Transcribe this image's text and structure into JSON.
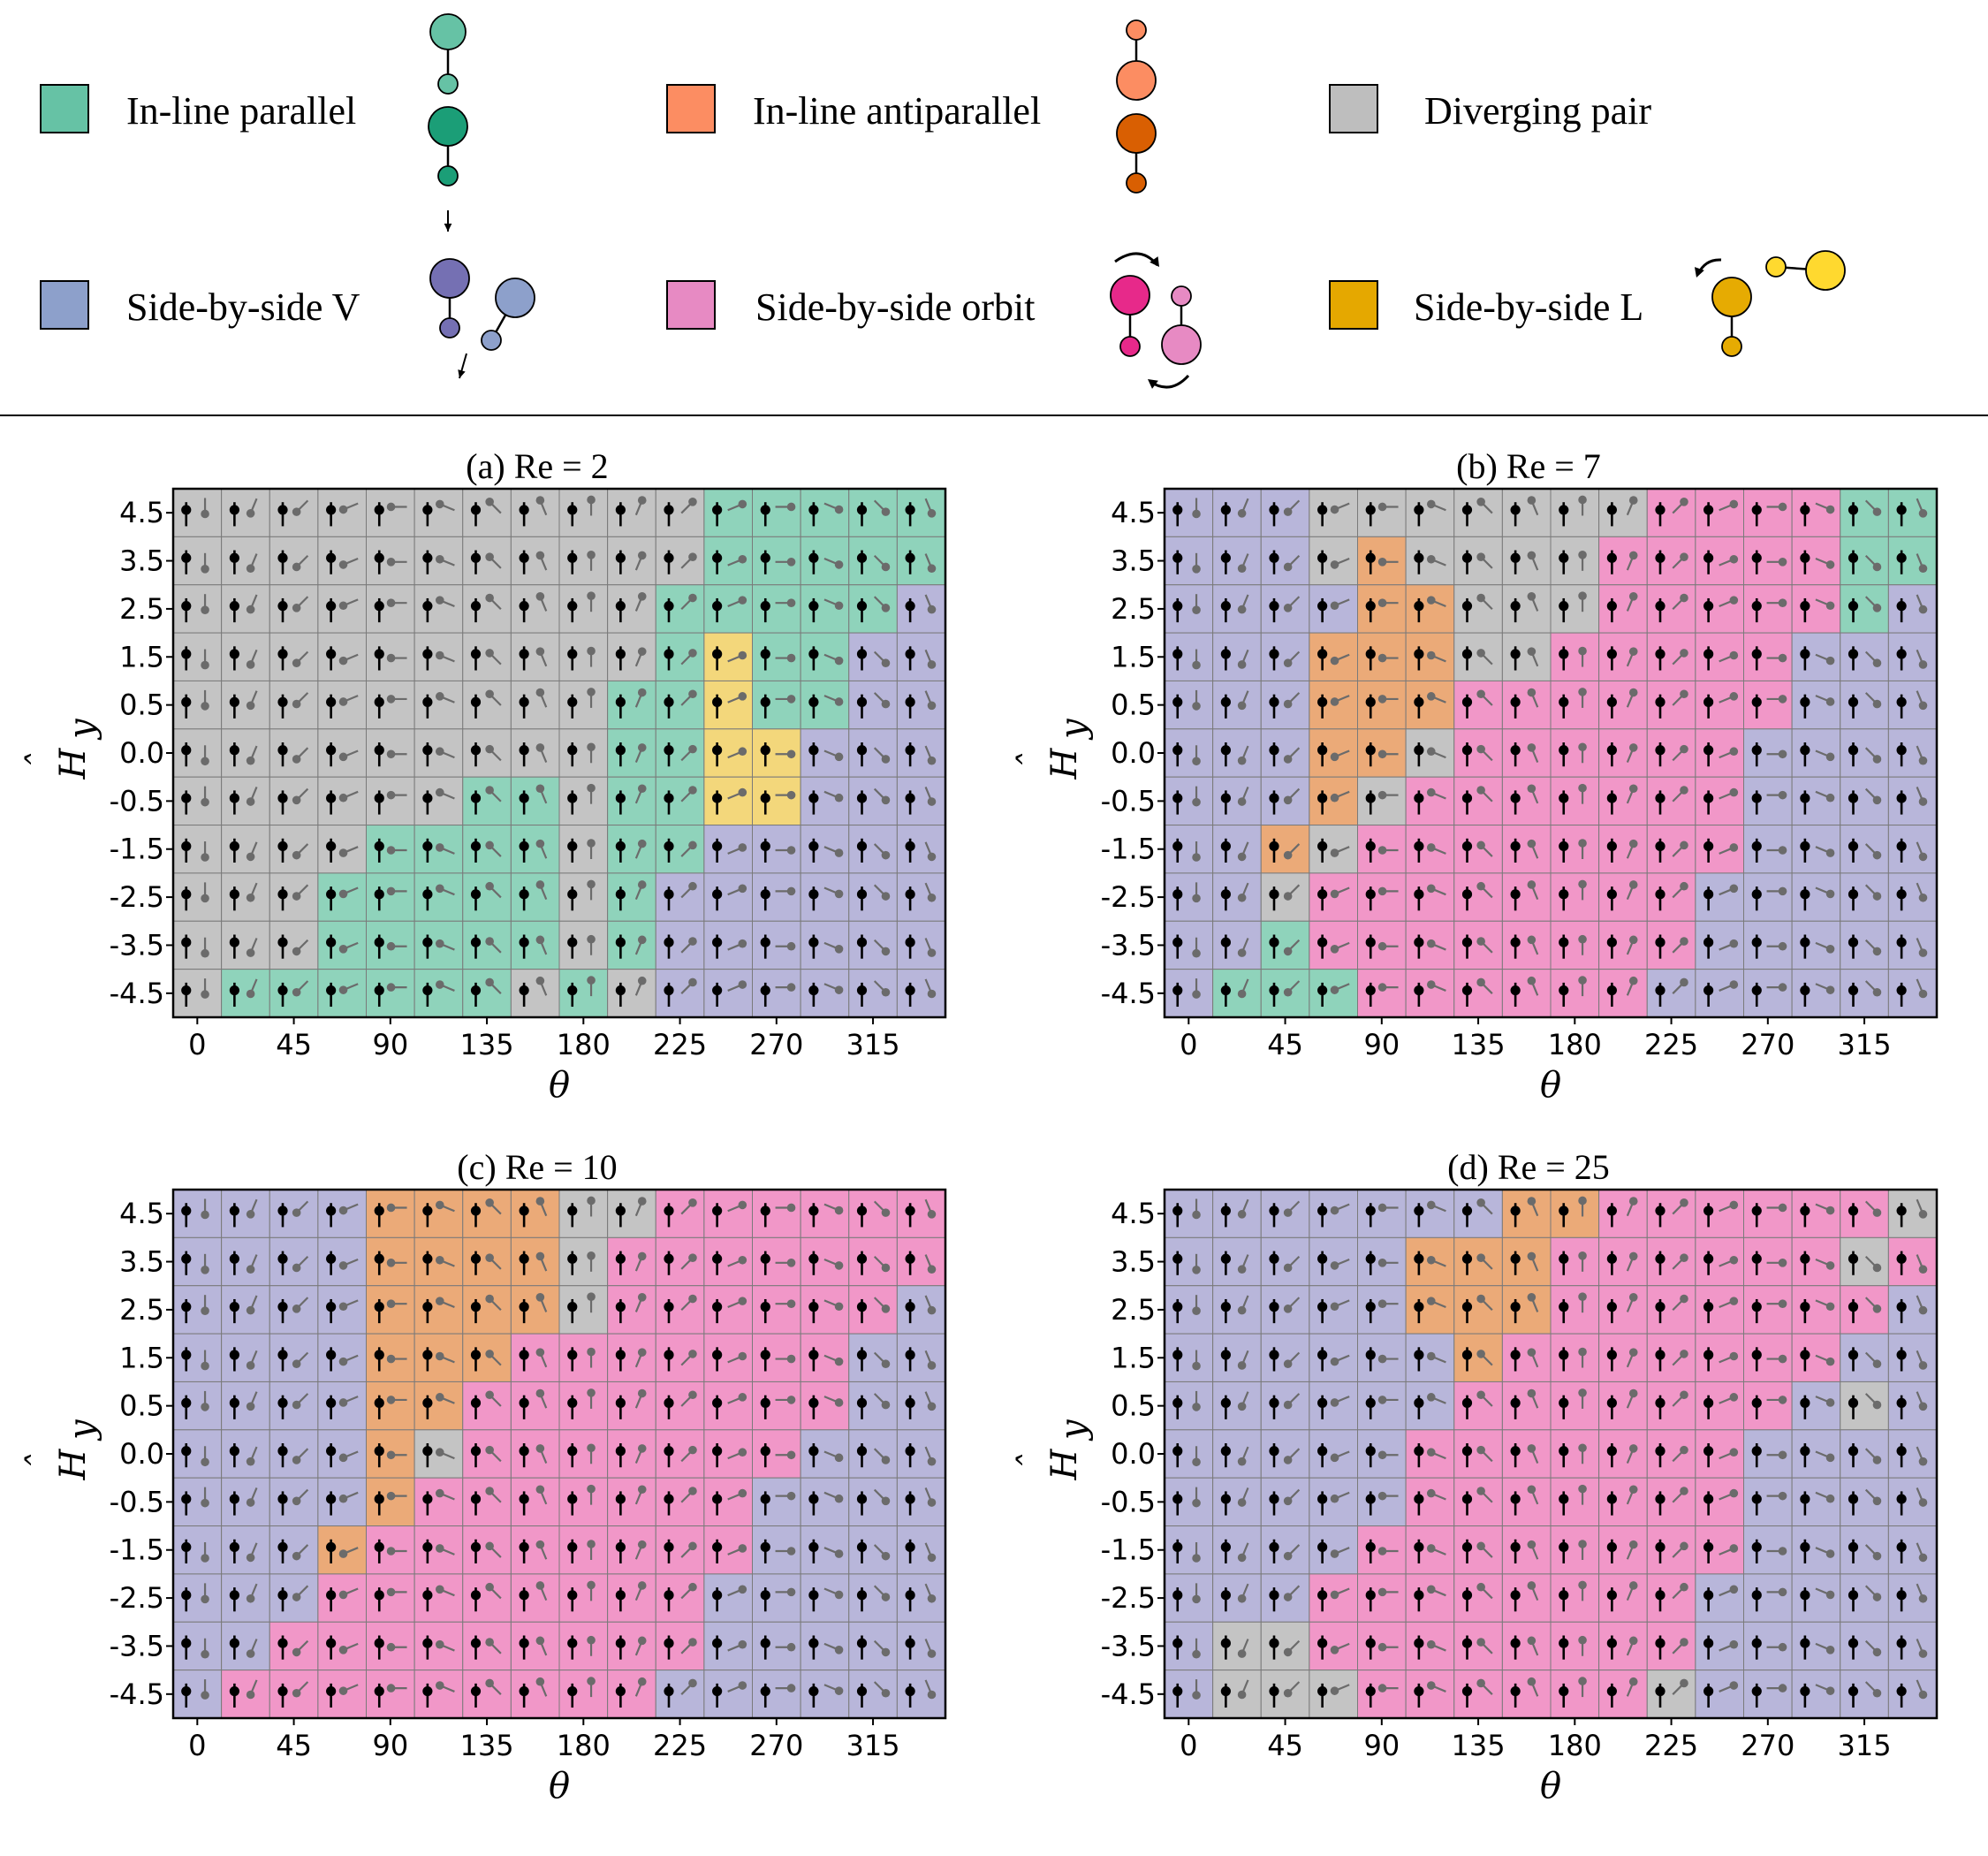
{
  "legend": {
    "items": [
      {
        "key": "P",
        "label": "In-line parallel",
        "color": "#66c2a5"
      },
      {
        "key": "A",
        "label": "In-line antiparallel",
        "color": "#fc8d62"
      },
      {
        "key": "D",
        "label": "Diverging pair",
        "color": "#bebebe"
      },
      {
        "key": "V",
        "label": "Side-by-side V",
        "color": "#8da0cb"
      },
      {
        "key": "O",
        "label": "Side-by-side orbit",
        "color": "#e78ac3"
      },
      {
        "key": "L",
        "label": "Side-by-side L",
        "color": "#e5a800"
      }
    ]
  },
  "chart_data": [
    {
      "type": "heatmap",
      "title": "(a) Re = 2",
      "xlabel": "θ",
      "ylabel": "Ĥ_y",
      "x_ticks": [
        "0",
        "45",
        "90",
        "135",
        "180",
        "225",
        "270",
        "315"
      ],
      "y_ticks": [
        "4.5",
        "3.5",
        "2.5",
        "1.5",
        "0.5",
        "0.0",
        "-0.5",
        "-1.5",
        "-2.5",
        "-3.5",
        "-4.5"
      ],
      "rows": [
        "DDDDDDDDDDDPPPPP",
        "DDDDDDDDDDDPPPPP",
        "DDDDDDDDDDPPPPPV",
        "DDDDDDDDDDPLPPVV",
        "DDDDDDDDDPPLPPVV",
        "DDDDDDDDDPPLLVVV",
        "DDDDDDPPDPPLLVVV",
        "DDDDPPPPDPPVVVVV",
        "DDDPPPPPDPVVVVVV",
        "DDDPPPPPDPVVVVVV",
        "DPPPPPPDPDVVVVVV"
      ]
    },
    {
      "type": "heatmap",
      "title": "(b) Re = 7",
      "xlabel": "θ",
      "ylabel": "Ĥ_y",
      "x_ticks": [
        "0",
        "45",
        "90",
        "135",
        "180",
        "225",
        "270",
        "315"
      ],
      "y_ticks": [
        "4.5",
        "3.5",
        "2.5",
        "1.5",
        "0.5",
        "0.0",
        "-0.5",
        "-1.5",
        "-2.5",
        "-3.5",
        "-4.5"
      ],
      "rows": [
        "VVVDDDDDDDOOOOPP",
        "VVVDADDDDOOOOOPP",
        "VVVVAADDDOOOOOPV",
        "VVVAAADDOOOOOVVV",
        "VVVAAAOOOOOOOVVV",
        "VVVAADOOOOOOVVVV",
        "VVVADOOOOOOOVVVV",
        "VVADOOOOOOOOVVVV",
        "VVDOOOOOOOOVVVVV",
        "VVPOOOOOOOOVVVVV",
        "VPPPOOOOOOVVVVVV"
      ]
    },
    {
      "type": "heatmap",
      "title": "(c) Re = 10",
      "xlabel": "θ",
      "ylabel": "Ĥ_y",
      "x_ticks": [
        "0",
        "45",
        "90",
        "135",
        "180",
        "225",
        "270",
        "315"
      ],
      "y_ticks": [
        "4.5",
        "3.5",
        "2.5",
        "1.5",
        "0.5",
        "0.0",
        "-0.5",
        "-1.5",
        "-2.5",
        "-3.5",
        "-4.5"
      ],
      "rows": [
        "VVVVAAAADDOOOOOO",
        "VVVVAAAADOOOOOOO",
        "VVVVAAAADOOOOOOV",
        "VVVVAAAOOOOOOOVV",
        "VVVVAAOOOOOOOOVV",
        "VVVVADOOOOOOOVVV",
        "VVVVAOOOOOOOVVVV",
        "VVVAOOOOOOOOVVVV",
        "VVVOOOOOOOOVVVVV",
        "VVOOOOOOOOOVVVVV",
        "VOOOOOOOOOVVVVVV"
      ]
    },
    {
      "type": "heatmap",
      "title": "(d) Re = 25",
      "xlabel": "θ",
      "ylabel": "Ĥ_y",
      "x_ticks": [
        "0",
        "45",
        "90",
        "135",
        "180",
        "225",
        "270",
        "315"
      ],
      "y_ticks": [
        "4.5",
        "3.5",
        "2.5",
        "1.5",
        "0.5",
        "0.0",
        "-0.5",
        "-1.5",
        "-2.5",
        "-3.5",
        "-4.5"
      ],
      "rows": [
        "VVVVVVVAAOOOOOOD",
        "VVVVVAAAOOOOOODO",
        "VVVVVAAAOOOOOOOV",
        "VVVVVVAOOOOOOOVV",
        "VVVVVVOOOOOOOVDV",
        "VVVVVOOOOOOOVVVV",
        "VVVVVOOOOOOOVVVV",
        "VVVVOOOOOOOOVVVV",
        "VVVOOOOOOOOVVVVV",
        "VDDOOOOOOOOVVVVV",
        "VDDDOOOOOODVVVVV"
      ]
    }
  ]
}
